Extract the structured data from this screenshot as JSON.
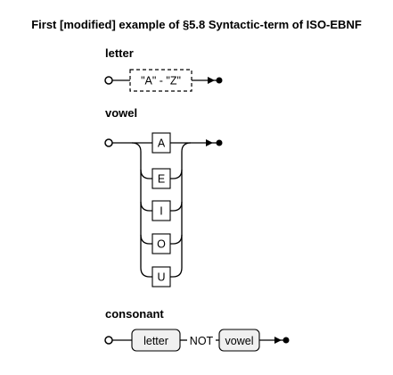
{
  "title": "First [modified] example of §5.8 Syntactic-term of ISO-EBNF",
  "rules": {
    "letter": {
      "name": "letter",
      "range": "\"A\" - \"Z\""
    },
    "vowel": {
      "name": "vowel",
      "choices": [
        "A",
        "E",
        "I",
        "O",
        "U"
      ]
    },
    "consonant": {
      "name": "consonant",
      "ref1": "letter",
      "keyword": "NOT",
      "ref2": "vowel"
    }
  }
}
